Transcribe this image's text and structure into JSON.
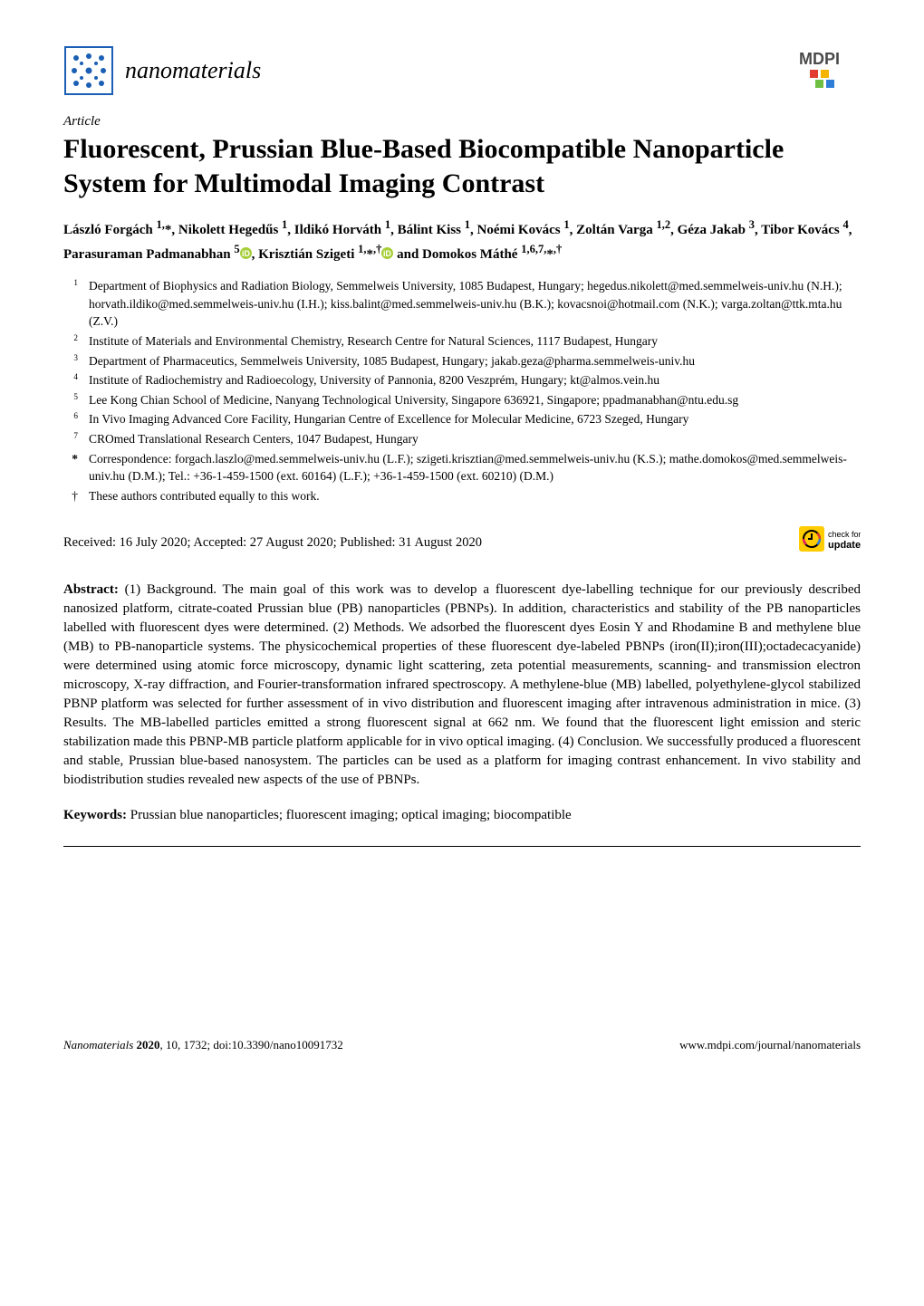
{
  "journal": {
    "name": "nanomaterials",
    "logo_colors": {
      "border": "#1a5fb4",
      "fill": "#ffffff",
      "dots": "#1a5fb4"
    }
  },
  "publisher": {
    "name": "MDPI",
    "logo_colors": {
      "text": "#4a4a4a",
      "accent1": "#6fbf44",
      "accent2": "#f4b400",
      "accent3": "#e03c31",
      "accent4": "#2e7dd7"
    }
  },
  "article_type": "Article",
  "title": "Fluorescent, Prussian Blue-Based Biocompatible Nanoparticle System for Multimodal Imaging Contrast",
  "authors_html": "László Forgách <sup>1,</sup>*, Nikolett Hegedűs <sup>1</sup>, Ildikó Horváth <sup>1</sup>, Bálint Kiss <sup>1</sup>, Noémi Kovács <sup>1</sup>, Zoltán Varga <sup>1,2</sup>, Géza Jakab <sup>3</sup>, Tibor Kovács <sup>4</sup>, Parasuraman Padmanabhan <sup>5</sup><span class='orcid-slot-1'></span>, Krisztián Szigeti <sup>1,</sup>*<sup>,†</sup><span class='orcid-slot-2'></span> and Domokos Máthé <sup>1,6,7,</sup>*<sup>,†</sup>",
  "orcid_color": "#a6ce39",
  "affiliations": [
    {
      "num": "1",
      "text": "Department of Biophysics and Radiation Biology, Semmelweis University, 1085 Budapest, Hungary; hegedus.nikolett@med.semmelweis-univ.hu (N.H.); horvath.ildiko@med.semmelweis-univ.hu (I.H.); kiss.balint@med.semmelweis-univ.hu (B.K.); kovacsnoi@hotmail.com (N.K.); varga.zoltan@ttk.mta.hu (Z.V.)"
    },
    {
      "num": "2",
      "text": "Institute of Materials and Environmental Chemistry, Research Centre for Natural Sciences, 1117 Budapest, Hungary"
    },
    {
      "num": "3",
      "text": "Department of Pharmaceutics, Semmelweis University, 1085 Budapest, Hungary; jakab.geza@pharma.semmelweis-univ.hu"
    },
    {
      "num": "4",
      "text": "Institute of Radiochemistry and Radioecology, University of Pannonia, 8200 Veszprém, Hungary; kt@almos.vein.hu"
    },
    {
      "num": "5",
      "text": "Lee Kong Chian School of Medicine, Nanyang Technological University, Singapore 636921, Singapore; ppadmanabhan@ntu.edu.sg"
    },
    {
      "num": "6",
      "text": "In Vivo Imaging Advanced Core Facility, Hungarian Centre of Excellence for Molecular Medicine, 6723 Szeged, Hungary"
    },
    {
      "num": "7",
      "text": "CROmed Translational Research Centers, 1047 Budapest, Hungary"
    }
  ],
  "correspondence": {
    "sym": "*",
    "text": "Correspondence: forgach.laszlo@med.semmelweis-univ.hu (L.F.); szigeti.krisztian@med.semmelweis-univ.hu (K.S.); mathe.domokos@med.semmelweis-univ.hu (D.M.); Tel.: +36-1-459-1500 (ext. 60164) (L.F.); +36-1-459-1500 (ext. 60210) (D.M.)"
  },
  "contrib_note": {
    "sym": "†",
    "text": "These authors contributed equally to this work."
  },
  "received": "Received: 16 July 2020; Accepted: 27 August 2020; Published: 31 August 2020",
  "updates_badge": {
    "label_top": "check for",
    "label_bottom": "updates",
    "arrow_bg": "#ffcc00",
    "circle_colors": [
      "#e03c31",
      "#2e7dd7",
      "#e91e63"
    ]
  },
  "abstract": {
    "label": "Abstract:",
    "text": " (1) Background. The main goal of this work was to develop a fluorescent dye-labelling technique for our previously described nanosized platform, citrate-coated Prussian blue (PB) nanoparticles (PBNPs). In addition, characteristics and stability of the PB nanoparticles labelled with fluorescent dyes were determined. (2) Methods. We adsorbed the fluorescent dyes Eosin Y and Rhodamine B and methylene blue (MB) to PB-nanoparticle systems. The physicochemical properties of these fluorescent dye-labeled PBNPs (iron(II);iron(III);octadecacyanide) were determined using atomic force microscopy, dynamic light scattering, zeta potential measurements, scanning- and transmission electron microscopy, X-ray diffraction, and Fourier-transformation infrared spectroscopy. A methylene-blue (MB) labelled, polyethylene-glycol stabilized PBNP platform was selected for further assessment of in vivo distribution and fluorescent imaging after intravenous administration in mice. (3) Results. The MB-labelled particles emitted a strong fluorescent signal at 662 nm. We found that the fluorescent light emission and steric stabilization made this PBNP-MB particle platform applicable for in vivo optical imaging. (4) Conclusion. We successfully produced a fluorescent and stable, Prussian blue-based nanosystem. The particles can be used as a platform for imaging contrast enhancement. In vivo stability and biodistribution studies revealed new aspects of the use of PBNPs."
  },
  "keywords": {
    "label": "Keywords:",
    "text": " Prussian blue nanoparticles; fluorescent imaging; optical imaging; biocompatible"
  },
  "footer": {
    "left_italic": "Nanomaterials ",
    "left_bold": "2020",
    "left_rest": ", 10, 1732; doi:10.3390/nano10091732",
    "right": "www.mdpi.com/journal/nanomaterials"
  }
}
